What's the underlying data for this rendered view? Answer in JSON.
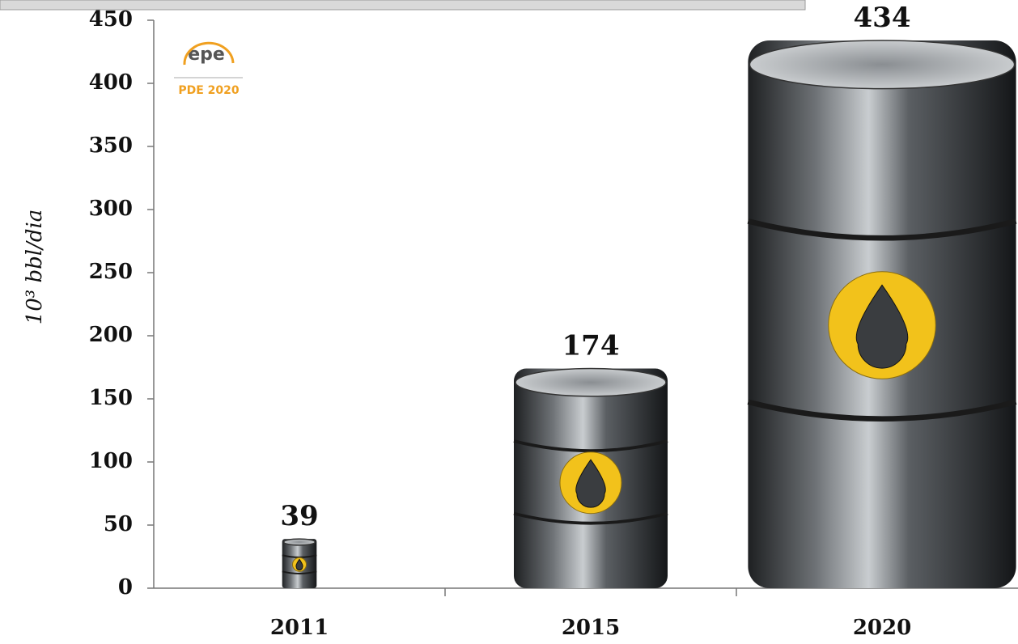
{
  "chart_data": {
    "type": "pictogram-bar",
    "y_label": "10³ bbl/dia",
    "logo_text": "epe",
    "logo_caption": "PDE 2020",
    "categories": [
      "2011",
      "2015",
      "2020"
    ],
    "values": [
      39,
      174,
      434
    ],
    "ylim": [
      0,
      450
    ],
    "yticks": [
      0,
      50,
      100,
      150,
      200,
      250,
      300,
      350,
      400,
      450
    ],
    "color": "#3a3d40",
    "emblem_color": "#f2c21b",
    "grid": false
  }
}
